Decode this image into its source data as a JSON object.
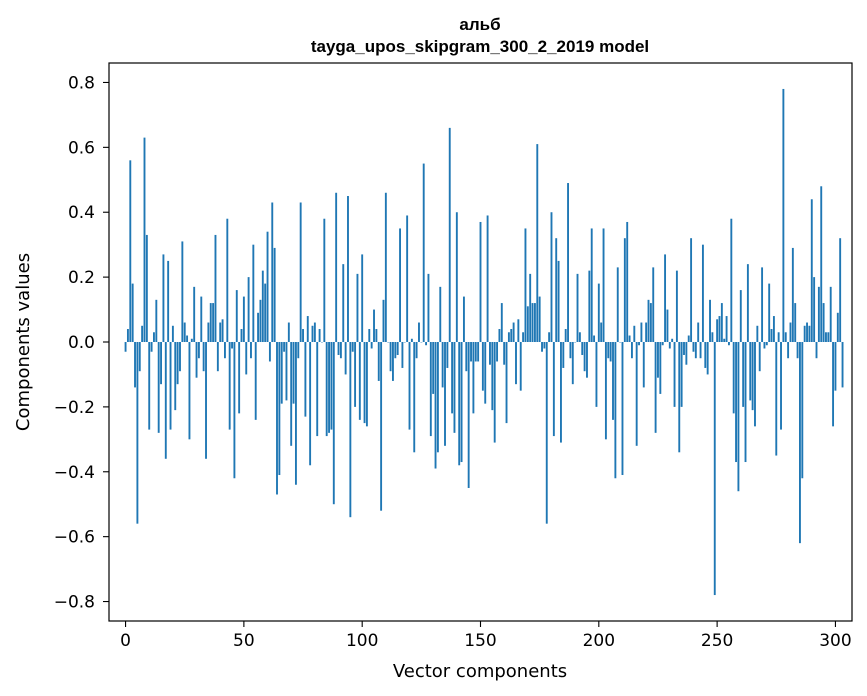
{
  "chart_data": {
    "type": "bar",
    "title": "альб",
    "subtitle": "tayga_upos_skipgram_300_2_2019 model",
    "xlabel": "Vector components",
    "ylabel": "Components values",
    "xlim": [
      -7,
      307
    ],
    "ylim": [
      -0.86,
      0.86
    ],
    "xticks": [
      0,
      50,
      100,
      150,
      200,
      250,
      300
    ],
    "xtick_labels": [
      "0",
      "50",
      "100",
      "150",
      "200",
      "250",
      "300"
    ],
    "yticks": [
      0.8,
      0.6,
      0.4,
      0.2,
      0.0,
      -0.2,
      -0.4,
      -0.6,
      -0.8
    ],
    "ytick_labels": [
      "0.8",
      "0.6",
      "0.4",
      "0.2",
      "0.0",
      "−0.2",
      "−0.4",
      "−0.6",
      "−0.8"
    ],
    "bar_color": "#1f77b4",
    "grid": false,
    "values": [
      -0.03,
      0.04,
      0.56,
      0.18,
      -0.14,
      -0.56,
      -0.09,
      0.05,
      0.63,
      0.33,
      -0.27,
      -0.03,
      0.03,
      0.13,
      -0.28,
      -0.13,
      0.27,
      -0.36,
      0.25,
      -0.27,
      0.05,
      -0.21,
      -0.13,
      -0.09,
      0.31,
      0.06,
      0.02,
      -0.3,
      0.01,
      0.17,
      -0.11,
      -0.05,
      0.14,
      -0.09,
      -0.36,
      0.06,
      0.12,
      0.12,
      0.33,
      -0.09,
      0.06,
      0.07,
      -0.05,
      0.38,
      -0.27,
      -0.02,
      -0.42,
      0.16,
      -0.22,
      0.04,
      0.14,
      -0.1,
      0.2,
      -0.05,
      0.3,
      -0.24,
      0.09,
      0.13,
      0.22,
      0.18,
      0.34,
      -0.06,
      0.43,
      0.29,
      -0.47,
      -0.41,
      -0.19,
      -0.03,
      -0.18,
      0.06,
      -0.32,
      -0.19,
      -0.44,
      -0.05,
      0.43,
      0.04,
      -0.23,
      0.08,
      -0.38,
      0.05,
      0.06,
      -0.29,
      0.04,
      0.0,
      0.38,
      -0.29,
      -0.28,
      -0.27,
      -0.5,
      0.46,
      -0.04,
      -0.05,
      0.24,
      -0.1,
      0.45,
      -0.54,
      -0.03,
      -0.2,
      0.21,
      -0.24,
      0.27,
      -0.25,
      -0.26,
      0.04,
      -0.02,
      0.1,
      0.04,
      -0.12,
      -0.52,
      0.13,
      0.46,
      0.0,
      -0.09,
      -0.12,
      -0.05,
      -0.04,
      0.35,
      -0.08,
      0.0,
      0.39,
      -0.27,
      0.01,
      -0.34,
      -0.05,
      0.06,
      0.0,
      0.55,
      -0.01,
      0.21,
      -0.29,
      -0.16,
      -0.39,
      -0.34,
      0.17,
      -0.14,
      -0.32,
      -0.08,
      0.66,
      -0.22,
      -0.28,
      0.4,
      -0.38,
      -0.37,
      0.14,
      -0.09,
      -0.45,
      -0.06,
      -0.22,
      -0.06,
      -0.06,
      0.37,
      -0.15,
      -0.19,
      0.39,
      -0.07,
      -0.21,
      -0.31,
      -0.06,
      0.04,
      0.12,
      -0.07,
      -0.25,
      0.03,
      0.04,
      0.06,
      -0.13,
      0.07,
      -0.15,
      0.03,
      0.35,
      0.11,
      0.21,
      0.12,
      0.12,
      0.61,
      0.14,
      -0.03,
      -0.02,
      -0.56,
      0.03,
      0.4,
      -0.29,
      0.32,
      0.25,
      -0.31,
      -0.08,
      0.04,
      0.49,
      -0.05,
      -0.13,
      0.0,
      0.21,
      0.03,
      -0.04,
      -0.09,
      -0.11,
      0.22,
      0.35,
      0.02,
      -0.2,
      0.18,
      0.06,
      0.35,
      -0.3,
      -0.05,
      -0.06,
      -0.24,
      -0.42,
      0.23,
      0.0,
      -0.41,
      0.32,
      0.37,
      0.02,
      -0.05,
      0.05,
      -0.32,
      -0.01,
      0.06,
      -0.14,
      0.06,
      0.13,
      0.12,
      0.23,
      -0.28,
      -0.11,
      -0.16,
      -0.01,
      0.27,
      0.1,
      -0.02,
      0.01,
      -0.2,
      0.22,
      -0.34,
      -0.2,
      -0.04,
      -0.07,
      0.02,
      0.32,
      -0.03,
      -0.05,
      0.06,
      -0.05,
      0.3,
      -0.08,
      -0.1,
      0.13,
      0.03,
      -0.78,
      0.07,
      0.08,
      0.12,
      0.01,
      0.08,
      -0.01,
      0.38,
      -0.22,
      -0.37,
      -0.46,
      0.16,
      -0.2,
      -0.37,
      0.24,
      -0.18,
      -0.21,
      -0.26,
      0.05,
      -0.09,
      0.23,
      -0.02,
      -0.01,
      0.18,
      0.04,
      0.08,
      -0.35,
      0.03,
      -0.27,
      0.78,
      0.03,
      -0.05,
      0.06,
      0.29,
      0.12,
      -0.05,
      -0.62,
      -0.42,
      0.05,
      0.06,
      0.05,
      0.44,
      0.2,
      -0.05,
      0.17,
      0.48,
      0.12,
      0.03,
      0.03,
      0.17,
      -0.26,
      -0.15,
      0.09,
      0.32,
      -0.14
    ]
  }
}
